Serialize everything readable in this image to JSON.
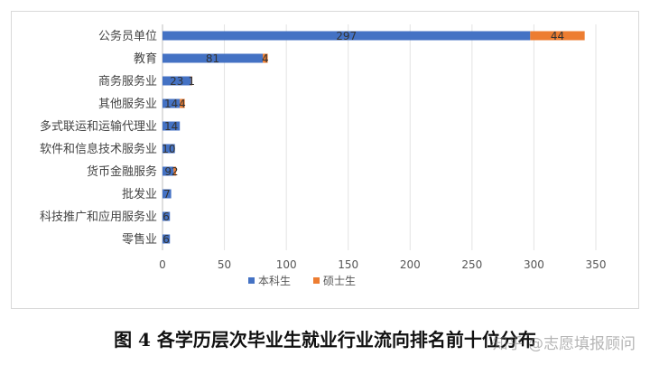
{
  "chart_data": {
    "type": "bar",
    "orientation": "horizontal",
    "stacked": true,
    "categories": [
      "公务员单位",
      "教育",
      "商务服务业",
      "其他服务业",
      "多式联运和运输代理业",
      "软件和信息技术服务业",
      "货币金融服务",
      "批发业",
      "科技推广和应用服务业",
      "零售业"
    ],
    "series": [
      {
        "name": "本科生",
        "color": "#4472C4",
        "values": [
          297,
          81,
          23,
          14,
          14,
          10,
          9,
          7,
          6,
          6
        ]
      },
      {
        "name": "硕士生",
        "color": "#ED7D31",
        "values": [
          44,
          4,
          1,
          4,
          0,
          0,
          2,
          0,
          0,
          0
        ]
      }
    ],
    "xlim": [
      0,
      350
    ],
    "xticks": [
      0,
      50,
      100,
      150,
      200,
      250,
      300,
      350
    ],
    "grid": "vertical",
    "legend_position": "bottom"
  },
  "caption": "图 4 各学历层次毕业生就业行业流向排名前十位分布",
  "watermark": "知乎 @志愿填报顾问"
}
